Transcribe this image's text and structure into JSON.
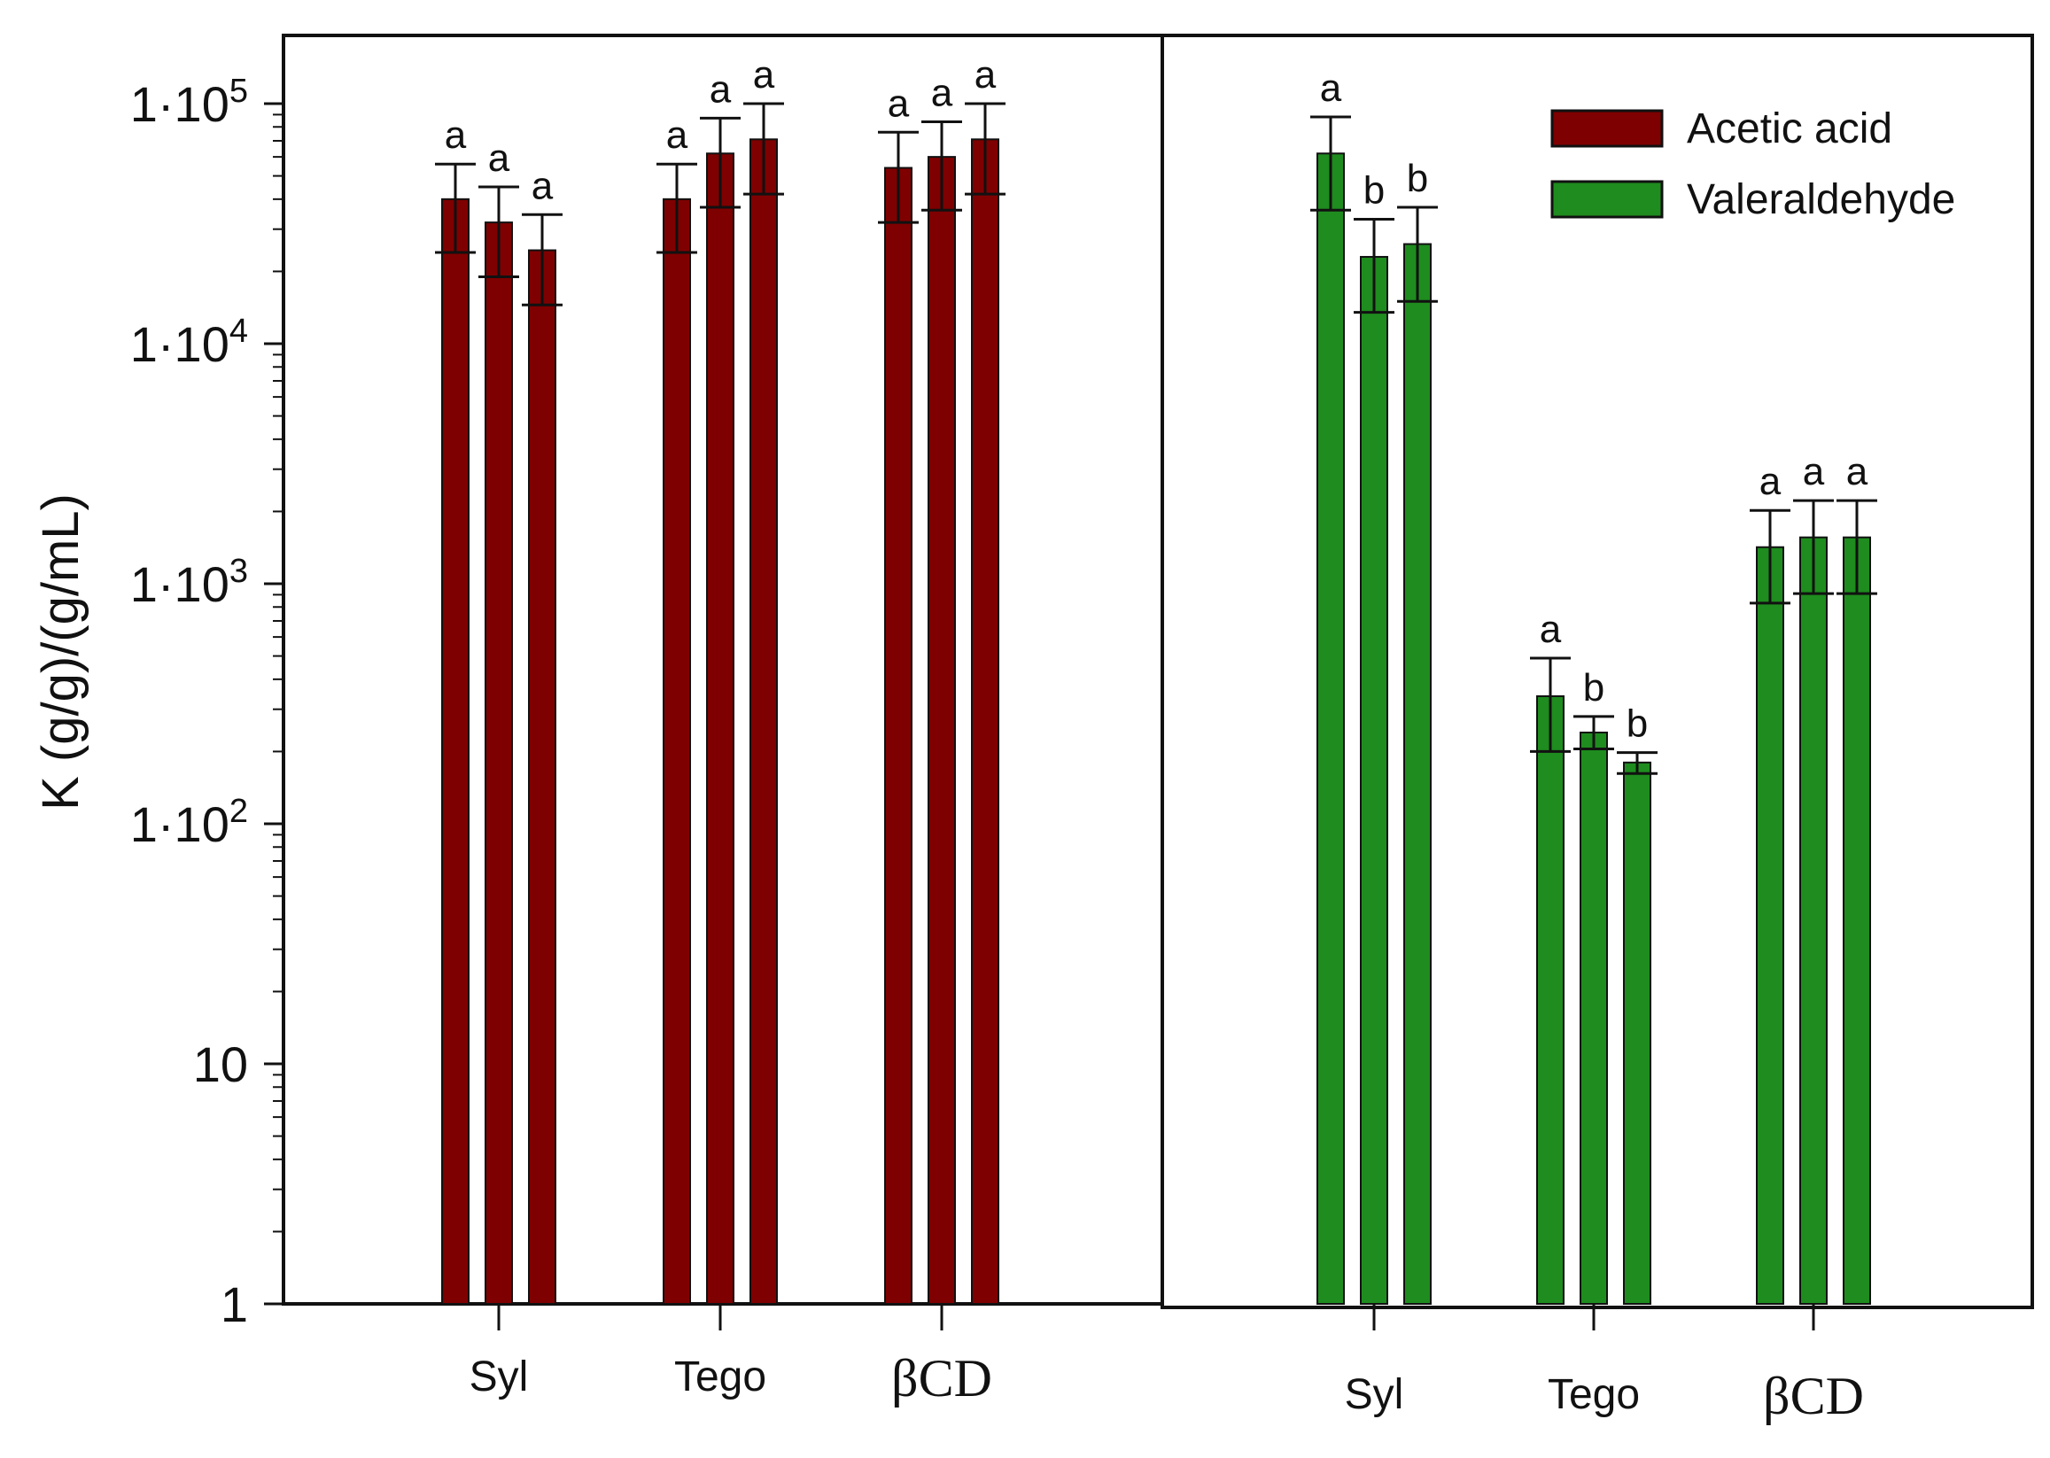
{
  "chart_data": {
    "type": "bar",
    "ylabel": "K (g/g)/(g/mL)",
    "yscale": "log",
    "ylim": [
      1,
      200000
    ],
    "yticks": [
      {
        "value": 1,
        "label": "1"
      },
      {
        "value": 10,
        "label": "10"
      },
      {
        "value": 100,
        "label": "1·10",
        "sup": "2"
      },
      {
        "value": 1000,
        "label": "1·10",
        "sup": "3"
      },
      {
        "value": 10000,
        "label": "1·10",
        "sup": "4"
      },
      {
        "value": 100000,
        "label": "1·10",
        "sup": "5"
      }
    ],
    "legend": {
      "position": "top-right",
      "entries": [
        {
          "label": "Acetic acid",
          "color": "#7f0000"
        },
        {
          "label": "Valeraldehyde",
          "color": "#1e8c1e"
        }
      ]
    },
    "panels": [
      {
        "series_name": "Acetic acid",
        "color": "#7f0000",
        "categories": [
          {
            "label": "Syl",
            "bars": [
              {
                "value": 40000,
                "err_low": 24000,
                "err_high": 56000,
                "sig": "a"
              },
              {
                "value": 32000,
                "err_low": 19000,
                "err_high": 45000,
                "sig": "a"
              },
              {
                "value": 24500,
                "err_low": 14500,
                "err_high": 34500,
                "sig": "a"
              }
            ]
          },
          {
            "label": "Tego",
            "bars": [
              {
                "value": 40000,
                "err_low": 24000,
                "err_high": 56000,
                "sig": "a"
              },
              {
                "value": 62000,
                "err_low": 37000,
                "err_high": 87000,
                "sig": "a"
              },
              {
                "value": 71000,
                "err_low": 42000,
                "err_high": 100000,
                "sig": "a"
              }
            ]
          },
          {
            "label": "βCD",
            "bars": [
              {
                "value": 54000,
                "err_low": 32000,
                "err_high": 76000,
                "sig": "a"
              },
              {
                "value": 60000,
                "err_low": 36000,
                "err_high": 84000,
                "sig": "a"
              },
              {
                "value": 71000,
                "err_low": 42000,
                "err_high": 100000,
                "sig": "a"
              }
            ]
          }
        ]
      },
      {
        "series_name": "Valeraldehyde",
        "color": "#1e8c1e",
        "categories": [
          {
            "label": "Syl",
            "bars": [
              {
                "value": 62000,
                "err_low": 36000,
                "err_high": 88000,
                "sig": "a"
              },
              {
                "value": 23000,
                "err_low": 13500,
                "err_high": 33000,
                "sig": "b"
              },
              {
                "value": 26000,
                "err_low": 15000,
                "err_high": 37000,
                "sig": "b"
              }
            ]
          },
          {
            "label": "Tego",
            "bars": [
              {
                "value": 340,
                "err_low": 200,
                "err_high": 490,
                "sig": "a"
              },
              {
                "value": 240,
                "err_low": 205,
                "err_high": 280,
                "sig": "b"
              },
              {
                "value": 180,
                "err_low": 162,
                "err_high": 198,
                "sig": "b"
              }
            ]
          },
          {
            "label": "βCD",
            "bars": [
              {
                "value": 1420,
                "err_low": 830,
                "err_high": 2020,
                "sig": "a"
              },
              {
                "value": 1560,
                "err_low": 910,
                "err_high": 2220,
                "sig": "a"
              },
              {
                "value": 1560,
                "err_low": 910,
                "err_high": 2220,
                "sig": "a"
              }
            ]
          }
        ]
      }
    ]
  }
}
